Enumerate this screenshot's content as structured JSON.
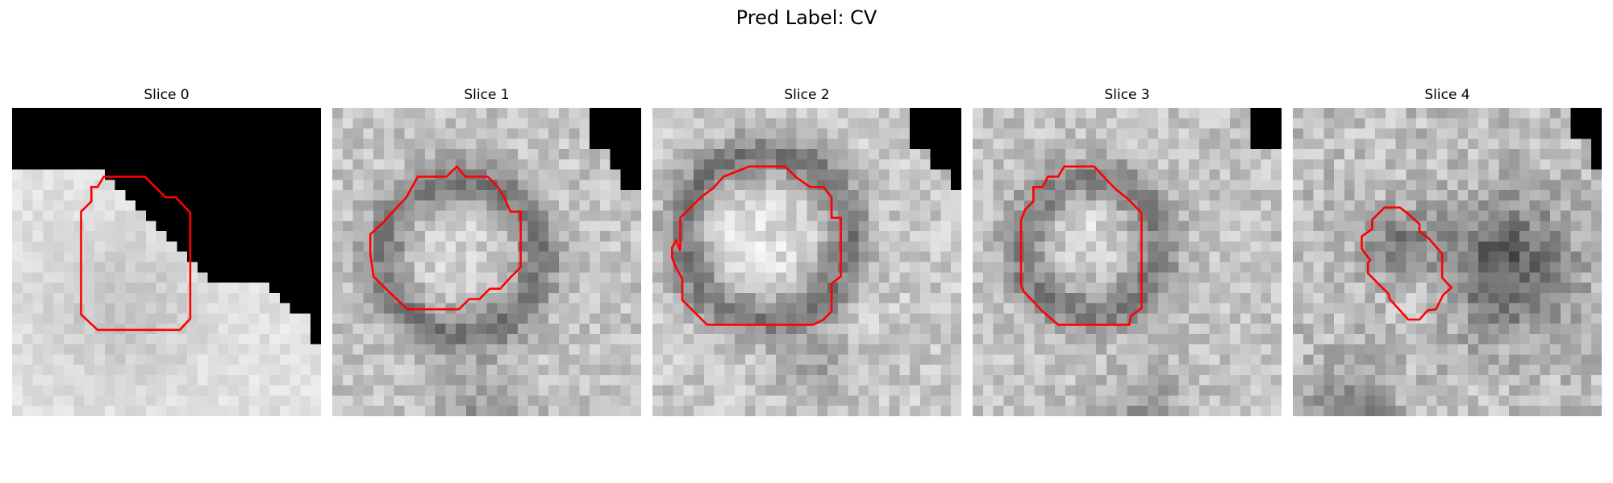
{
  "figure": {
    "title": "Pred Label: CV"
  },
  "panels": [
    {
      "title": "Slice 0"
    },
    {
      "title": "Slice 1"
    },
    {
      "title": "Slice 2"
    },
    {
      "title": "Slice 3"
    },
    {
      "title": "Slice 4"
    }
  ],
  "colors": {
    "background": "#ffffff",
    "contour": "#ff0000",
    "mask": "#000000"
  }
}
